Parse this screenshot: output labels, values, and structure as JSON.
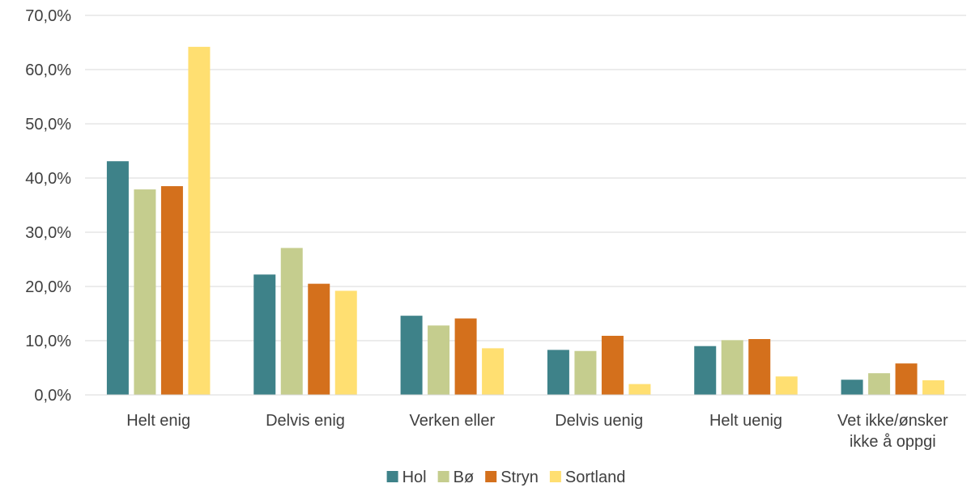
{
  "chart_data": {
    "type": "bar",
    "categories": [
      [
        "Helt enig"
      ],
      [
        "Delvis enig"
      ],
      [
        "Verken eller"
      ],
      [
        "Delvis uenig"
      ],
      [
        "Helt uenig"
      ],
      [
        "Vet ikke/ønsker",
        "ikke å oppgi"
      ]
    ],
    "series": [
      {
        "name": "Hol",
        "color": "#3e8289",
        "values": [
          43.1,
          22.2,
          14.6,
          8.3,
          9.0,
          2.8
        ]
      },
      {
        "name": "Bø",
        "color": "#c5cd8e",
        "values": [
          37.9,
          27.1,
          12.8,
          8.1,
          10.1,
          4.0
        ]
      },
      {
        "name": "Stryn",
        "color": "#d4701c",
        "values": [
          38.5,
          20.5,
          14.1,
          10.9,
          10.3,
          5.8
        ]
      },
      {
        "name": "Sortland",
        "color": "#ffdf71",
        "values": [
          64.2,
          19.2,
          8.6,
          2.0,
          3.4,
          2.7
        ]
      }
    ],
    "ylim": [
      0,
      70
    ],
    "yticks": [
      "0,0%",
      "10,0%",
      "20,0%",
      "30,0%",
      "40,0%",
      "50,0%",
      "60,0%",
      "70,0%"
    ],
    "grid": true,
    "legend_position": "bottom",
    "xlabel": "",
    "ylabel": "",
    "title": ""
  }
}
